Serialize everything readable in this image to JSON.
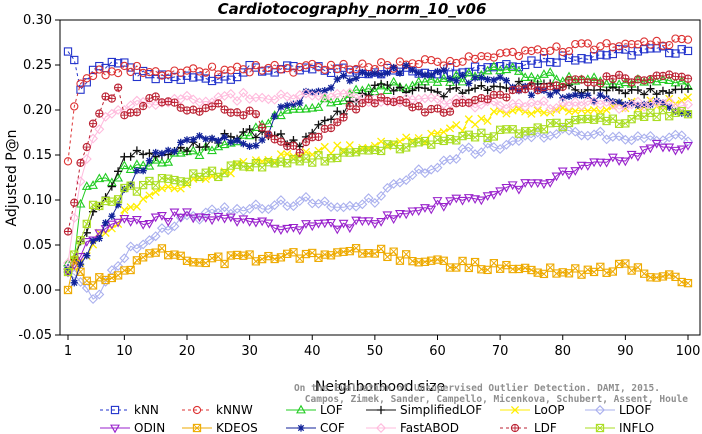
{
  "chart_data": {
    "type": "line",
    "title": "Cardiotocography_norm_10_v06",
    "xlabel": "Neighborhood size",
    "ylabel": "Adjusted P@n",
    "xlim": [
      1,
      100
    ],
    "ylim": [
      -0.05,
      0.3
    ],
    "x_ticks": [
      "1",
      "10",
      "20",
      "30",
      "40",
      "50",
      "60",
      "70",
      "80",
      "90",
      "100"
    ],
    "y_ticks": [
      "-0.05",
      "0.00",
      "0.05",
      "0.10",
      "0.15",
      "0.20",
      "0.25",
      "0.30"
    ],
    "credit_lines": [
      "Campos, Zimek, Sander, Campello, Micenkova, Schubert, Assent, Houle",
      "On the Evaluation of Unsupervised Outlier Detection. DAMI, 2015."
    ],
    "legend_position": "bottom",
    "series": [
      {
        "name": "kNN",
        "color": "#2233cc",
        "marker": "square",
        "dashed": true,
        "knots": [
          [
            1,
            0.265
          ],
          [
            2,
            0.26
          ],
          [
            3,
            0.222
          ],
          [
            4,
            0.232
          ],
          [
            5,
            0.245
          ],
          [
            7,
            0.25
          ],
          [
            8,
            0.255
          ],
          [
            10,
            0.248
          ],
          [
            12,
            0.24
          ],
          [
            15,
            0.235
          ],
          [
            25,
            0.236
          ],
          [
            28,
            0.24
          ],
          [
            30,
            0.245
          ],
          [
            60,
            0.243
          ],
          [
            70,
            0.25
          ],
          [
            80,
            0.258
          ],
          [
            90,
            0.264
          ],
          [
            100,
            0.268
          ]
        ]
      },
      {
        "name": "kNNW",
        "color": "#dd3333",
        "marker": "circle",
        "dashed": true,
        "knots": [
          [
            1,
            0.143
          ],
          [
            2,
            0.205
          ],
          [
            3,
            0.232
          ],
          [
            4,
            0.24
          ],
          [
            6,
            0.242
          ],
          [
            10,
            0.245
          ],
          [
            20,
            0.242
          ],
          [
            30,
            0.245
          ],
          [
            50,
            0.248
          ],
          [
            60,
            0.253
          ],
          [
            70,
            0.262
          ],
          [
            80,
            0.268
          ],
          [
            90,
            0.273
          ],
          [
            100,
            0.275
          ]
        ]
      },
      {
        "name": "LOF",
        "color": "#22cc22",
        "marker": "triangle-up",
        "dashed": false,
        "knots": [
          [
            1,
            0.03
          ],
          [
            2,
            0.04
          ],
          [
            3,
            0.1
          ],
          [
            4,
            0.12
          ],
          [
            5,
            0.12
          ],
          [
            8,
            0.12
          ],
          [
            10,
            0.135
          ],
          [
            15,
            0.143
          ],
          [
            20,
            0.15
          ],
          [
            25,
            0.16
          ],
          [
            30,
            0.175
          ],
          [
            35,
            0.195
          ],
          [
            40,
            0.205
          ],
          [
            45,
            0.215
          ],
          [
            50,
            0.225
          ],
          [
            55,
            0.228
          ],
          [
            60,
            0.232
          ],
          [
            65,
            0.236
          ],
          [
            70,
            0.245
          ],
          [
            75,
            0.24
          ],
          [
            80,
            0.236
          ],
          [
            90,
            0.232
          ],
          [
            100,
            0.228
          ]
        ]
      },
      {
        "name": "SimplifiedLOF",
        "color": "#111111",
        "marker": "plus",
        "dashed": false,
        "knots": [
          [
            1,
            0.02
          ],
          [
            3,
            0.05
          ],
          [
            5,
            0.085
          ],
          [
            8,
            0.11
          ],
          [
            10,
            0.15
          ],
          [
            15,
            0.15
          ],
          [
            20,
            0.158
          ],
          [
            25,
            0.168
          ],
          [
            30,
            0.175
          ],
          [
            35,
            0.17
          ],
          [
            38,
            0.158
          ],
          [
            40,
            0.175
          ],
          [
            45,
            0.2
          ],
          [
            50,
            0.225
          ],
          [
            55,
            0.222
          ],
          [
            60,
            0.218
          ],
          [
            65,
            0.222
          ],
          [
            70,
            0.228
          ],
          [
            80,
            0.225
          ],
          [
            90,
            0.22
          ],
          [
            100,
            0.222
          ]
        ]
      },
      {
        "name": "LoOP",
        "color": "#ffee00",
        "marker": "cross",
        "dashed": false,
        "knots": [
          [
            1,
            0.02
          ],
          [
            3,
            0.03
          ],
          [
            5,
            0.055
          ],
          [
            8,
            0.07
          ],
          [
            10,
            0.085
          ],
          [
            15,
            0.105
          ],
          [
            20,
            0.12
          ],
          [
            25,
            0.13
          ],
          [
            30,
            0.14
          ],
          [
            40,
            0.155
          ],
          [
            50,
            0.16
          ],
          [
            60,
            0.17
          ],
          [
            65,
            0.185
          ],
          [
            70,
            0.198
          ],
          [
            75,
            0.2
          ],
          [
            80,
            0.198
          ],
          [
            90,
            0.205
          ],
          [
            100,
            0.21
          ]
        ]
      },
      {
        "name": "LDOF",
        "color": "#aab0ee",
        "marker": "diamond",
        "dashed": false,
        "knots": [
          [
            1,
            0.02
          ],
          [
            3,
            0.01
          ],
          [
            5,
            -0.01
          ],
          [
            6,
            0.0
          ],
          [
            8,
            0.02
          ],
          [
            10,
            0.04
          ],
          [
            20,
            0.08
          ],
          [
            30,
            0.092
          ],
          [
            40,
            0.1
          ],
          [
            45,
            0.092
          ],
          [
            50,
            0.1
          ],
          [
            55,
            0.125
          ],
          [
            60,
            0.14
          ],
          [
            65,
            0.155
          ],
          [
            70,
            0.16
          ],
          [
            75,
            0.172
          ],
          [
            80,
            0.175
          ],
          [
            90,
            0.17
          ],
          [
            100,
            0.17
          ]
        ]
      },
      {
        "name": "ODIN",
        "color": "#9922cc",
        "marker": "triangle-down",
        "dashed": false,
        "knots": [
          [
            1,
            0.02
          ],
          [
            3,
            0.04
          ],
          [
            5,
            0.06
          ],
          [
            8,
            0.07
          ],
          [
            10,
            0.075
          ],
          [
            15,
            0.078
          ],
          [
            20,
            0.085
          ],
          [
            25,
            0.08
          ],
          [
            30,
            0.073
          ],
          [
            35,
            0.07
          ],
          [
            40,
            0.07
          ],
          [
            50,
            0.075
          ],
          [
            55,
            0.085
          ],
          [
            60,
            0.095
          ],
          [
            70,
            0.108
          ],
          [
            80,
            0.128
          ],
          [
            90,
            0.148
          ],
          [
            95,
            0.158
          ],
          [
            100,
            0.16
          ]
        ]
      },
      {
        "name": "KDEOS",
        "color": "#eeaa00",
        "marker": "square-x",
        "dashed": false,
        "knots": [
          [
            1,
            0.0
          ],
          [
            2,
            0.03
          ],
          [
            3,
            0.02
          ],
          [
            5,
            0.01
          ],
          [
            8,
            0.015
          ],
          [
            10,
            0.02
          ],
          [
            12,
            0.032
          ],
          [
            15,
            0.045
          ],
          [
            20,
            0.03
          ],
          [
            30,
            0.035
          ],
          [
            40,
            0.038
          ],
          [
            50,
            0.045
          ],
          [
            55,
            0.035
          ],
          [
            60,
            0.03
          ],
          [
            70,
            0.025
          ],
          [
            80,
            0.02
          ],
          [
            90,
            0.025
          ],
          [
            100,
            0.01
          ]
        ]
      },
      {
        "name": "COF",
        "color": "#112299",
        "marker": "asterisk",
        "dashed": false,
        "knots": [
          [
            1,
            0.025
          ],
          [
            2,
            0.01
          ],
          [
            3,
            0.03
          ],
          [
            5,
            0.05
          ],
          [
            8,
            0.085
          ],
          [
            10,
            0.11
          ],
          [
            12,
            0.13
          ],
          [
            15,
            0.15
          ],
          [
            18,
            0.158
          ],
          [
            22,
            0.17
          ],
          [
            26,
            0.17
          ],
          [
            30,
            0.155
          ],
          [
            32,
            0.165
          ],
          [
            35,
            0.2
          ],
          [
            40,
            0.22
          ],
          [
            45,
            0.235
          ],
          [
            50,
            0.242
          ],
          [
            55,
            0.245
          ],
          [
            60,
            0.243
          ],
          [
            65,
            0.232
          ],
          [
            70,
            0.232
          ],
          [
            75,
            0.22
          ],
          [
            80,
            0.218
          ],
          [
            90,
            0.21
          ],
          [
            100,
            0.2
          ]
        ]
      },
      {
        "name": "FastABOD",
        "color": "#ffbbdd",
        "marker": "diamond",
        "dashed": false,
        "knots": [
          [
            1,
            0.03
          ],
          [
            2,
            0.08
          ],
          [
            3,
            0.12
          ],
          [
            5,
            0.17
          ],
          [
            8,
            0.2
          ],
          [
            10,
            0.205
          ],
          [
            20,
            0.212
          ],
          [
            30,
            0.215
          ],
          [
            40,
            0.218
          ],
          [
            50,
            0.213
          ],
          [
            60,
            0.21
          ],
          [
            70,
            0.205
          ],
          [
            80,
            0.205
          ],
          [
            90,
            0.205
          ],
          [
            100,
            0.205
          ]
        ]
      },
      {
        "name": "LDF",
        "color": "#bb2233",
        "marker": "circle-plus",
        "dashed": true,
        "knots": [
          [
            1,
            0.065
          ],
          [
            2,
            0.1
          ],
          [
            3,
            0.14
          ],
          [
            5,
            0.18
          ],
          [
            7,
            0.21
          ],
          [
            9,
            0.22
          ],
          [
            10,
            0.19
          ],
          [
            12,
            0.195
          ],
          [
            14,
            0.215
          ],
          [
            20,
            0.2
          ],
          [
            25,
            0.205
          ],
          [
            28,
            0.195
          ],
          [
            30,
            0.2
          ],
          [
            33,
            0.175
          ],
          [
            36,
            0.16
          ],
          [
            38,
            0.155
          ],
          [
            42,
            0.175
          ],
          [
            46,
            0.2
          ],
          [
            50,
            0.21
          ],
          [
            55,
            0.205
          ],
          [
            60,
            0.2
          ],
          [
            65,
            0.205
          ],
          [
            70,
            0.215
          ],
          [
            75,
            0.225
          ],
          [
            80,
            0.23
          ],
          [
            90,
            0.235
          ],
          [
            100,
            0.235
          ]
        ]
      },
      {
        "name": "INFLO",
        "color": "#aadd22",
        "marker": "square-x",
        "dashed": false,
        "knots": [
          [
            1,
            0.02
          ],
          [
            3,
            0.06
          ],
          [
            5,
            0.09
          ],
          [
            8,
            0.1
          ],
          [
            10,
            0.11
          ],
          [
            15,
            0.12
          ],
          [
            20,
            0.125
          ],
          [
            25,
            0.13
          ],
          [
            30,
            0.14
          ],
          [
            40,
            0.145
          ],
          [
            50,
            0.155
          ],
          [
            60,
            0.165
          ],
          [
            70,
            0.175
          ],
          [
            80,
            0.185
          ],
          [
            90,
            0.19
          ],
          [
            100,
            0.2
          ]
        ]
      }
    ]
  }
}
